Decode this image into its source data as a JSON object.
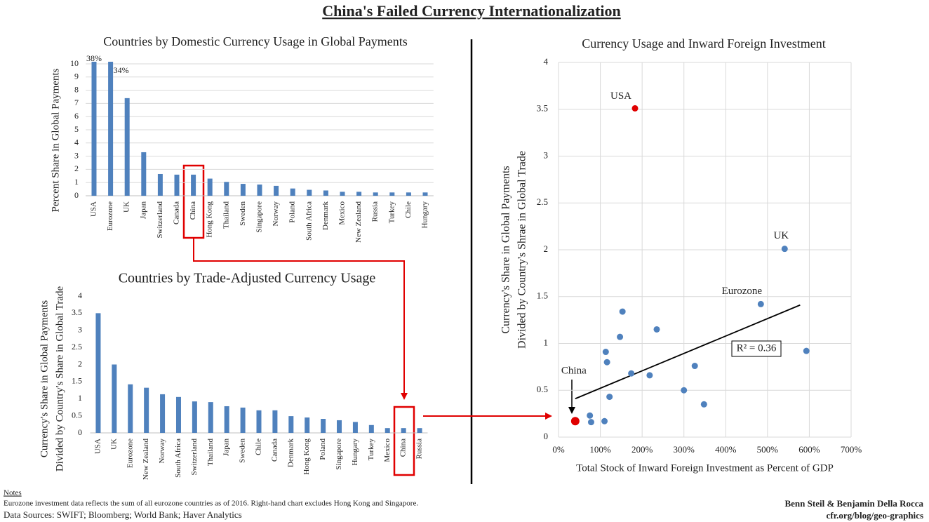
{
  "title": "China's Failed Currency Internationalization",
  "chart_data": [
    {
      "type": "bar",
      "title": "Countries by Domestic Currency Usage in Global Payments",
      "ylabel": [
        "Percent Share in Global Payments"
      ],
      "categories": [
        "USA",
        "Eurozone",
        "UK",
        "Japan",
        "Switzerland",
        "Canada",
        "China",
        "Hong Kong",
        "Thailand",
        "Sweden",
        "Singapore",
        "Norway",
        "Poland",
        "South Africa",
        "Denmark",
        "Mexico",
        "New Zealand",
        "Russia",
        "Turkey",
        "Chile",
        "Hungary"
      ],
      "values": [
        38,
        34,
        7.4,
        3.3,
        1.65,
        1.6,
        1.6,
        1.3,
        1.05,
        0.9,
        0.85,
        0.75,
        0.55,
        0.45,
        0.4,
        0.3,
        0.3,
        0.25,
        0.25,
        0.25,
        0.25
      ],
      "value_labels": [
        "38%",
        "34%",
        null,
        null,
        null,
        null,
        null,
        null,
        null,
        null,
        null,
        null,
        null,
        null,
        null,
        null,
        null,
        null,
        null,
        null,
        null
      ],
      "color": "#4f81bd",
      "ylim": [
        0,
        10
      ],
      "yticks": [
        0,
        1,
        2,
        3,
        4,
        5,
        6,
        7,
        8,
        9,
        10
      ],
      "grid": true
    },
    {
      "type": "bar",
      "title": "Countries by Trade-Adjusted  Currency Usage",
      "ylabel": [
        "Currency's Share in Global Payments",
        "Divided by Country's Share in Global Trade"
      ],
      "categories": [
        "USA",
        "UK",
        "Eurozone",
        "New Zealand",
        "Norway",
        "South Africa",
        "Switzerland",
        "Thailand",
        "Japan",
        "Sweden",
        "Chile",
        "Canada",
        "Denmark",
        "Hong Kong",
        "Poland",
        "Singapore",
        "Hungary",
        "Turkey",
        "Mexico",
        "China",
        "Russia"
      ],
      "values": [
        3.5,
        2.0,
        1.42,
        1.32,
        1.13,
        1.05,
        0.92,
        0.9,
        0.78,
        0.74,
        0.66,
        0.66,
        0.49,
        0.45,
        0.41,
        0.37,
        0.32,
        0.23,
        0.14,
        0.14,
        0.14
      ],
      "color": "#4f81bd",
      "ylim": [
        0,
        4
      ],
      "yticks": [
        0,
        0.5,
        1,
        1.5,
        2,
        2.5,
        3,
        3.5,
        4
      ],
      "grid": false
    },
    {
      "type": "scatter",
      "title": "Currency Usage and Inward Foreign Investment",
      "xlabel": "Total Stock of Inward Foreign Investment as Percent of GDP",
      "ylabel": [
        "Currency's Share in Global Payments",
        "Divided by Country's Shrae in Global Trade"
      ],
      "x": [
        183,
        541,
        484,
        40,
        153,
        147,
        235,
        113,
        116,
        174,
        218,
        326,
        593,
        300,
        122,
        348,
        75,
        78,
        110
      ],
      "values": [
        3.51,
        2.01,
        1.42,
        0.17,
        1.34,
        1.07,
        1.15,
        0.91,
        0.8,
        0.68,
        0.66,
        0.76,
        0.92,
        0.5,
        0.43,
        0.35,
        0.23,
        0.16,
        0.17
      ],
      "point_labels": [
        "USA",
        "UK",
        "Eurozone",
        "China",
        null,
        null,
        null,
        null,
        null,
        null,
        null,
        null,
        null,
        null,
        null,
        null,
        null,
        null,
        null
      ],
      "colors": [
        "#e00000",
        "#4f81bd",
        "#4f81bd",
        "#e00000",
        "#4f81bd",
        "#4f81bd",
        "#4f81bd",
        "#4f81bd",
        "#4f81bd",
        "#4f81bd",
        "#4f81bd",
        "#4f81bd",
        "#4f81bd",
        "#4f81bd",
        "#4f81bd",
        "#4f81bd",
        "#4f81bd",
        "#4f81bd",
        "#4f81bd"
      ],
      "trendline": {
        "x": [
          40,
          578
        ],
        "y": [
          0.41,
          1.41
        ]
      },
      "annotation": "R² = 0.36",
      "xlim": [
        0,
        700
      ],
      "xticks": [
        {
          "value": 0,
          "label": "0%"
        },
        {
          "value": 100,
          "label": "100%"
        },
        {
          "value": 200,
          "label": "200%"
        },
        {
          "value": 300,
          "label": "300%"
        },
        {
          "value": 400,
          "label": "400%"
        },
        {
          "value": 500,
          "label": "500%"
        },
        {
          "value": 600,
          "label": "600%"
        },
        {
          "value": 700,
          "label": "700%"
        }
      ],
      "ylim": [
        0,
        4
      ],
      "yticks": [
        0,
        0.5,
        1,
        1.5,
        2,
        2.5,
        3,
        3.5,
        4
      ],
      "grid": true
    }
  ],
  "notes": {
    "heading": "Notes",
    "text": "Eurozone investment data reflects the sum of all eurozone countries as of 2016. Right-hand chart excludes Hong Kong and Singapore.",
    "sources": "Data Sources: SWIFT; Bloomberg; World Bank; Haver Analytics",
    "authors": "Benn Steil & Benjamin Della Rocca",
    "site": "cfr.org/blog/geo-graphics"
  }
}
